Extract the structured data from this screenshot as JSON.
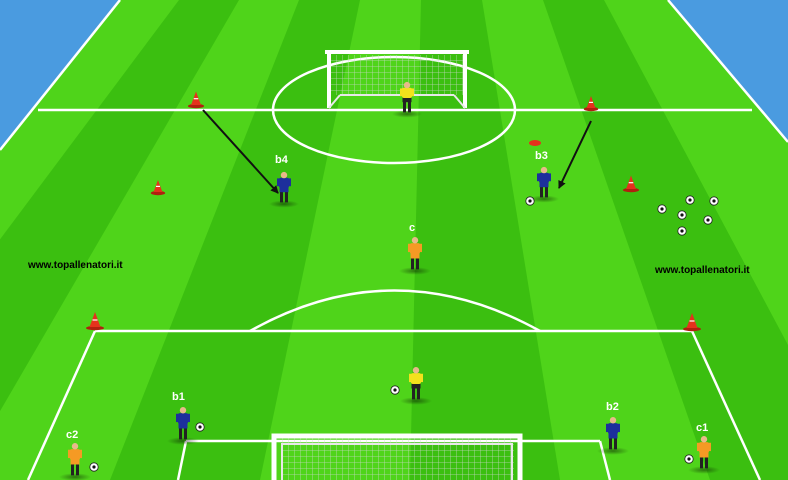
{
  "watermarks": {
    "left": "www.topallenatori.it",
    "right": "www.topallenatori.it"
  },
  "players": {
    "b1": "b1",
    "b2": "b2",
    "b3": "b3",
    "b4": "b4",
    "c": "c",
    "c1": "c1",
    "c2": "c2"
  },
  "colors": {
    "sky": "#4a9be0",
    "grass_light": "#4fd41a",
    "grass_dark": "#3bbf10",
    "lines": "#ffffff",
    "team_blue": "#1d2f9c",
    "team_orange": "#f59a24",
    "goalkeeper_yellow": "#f2e21c",
    "cone": "#e5321c",
    "arrow": "#111111"
  },
  "icons": {
    "cone": "cone-icon",
    "ball": "soccer-ball-icon",
    "goal": "goal-net-icon",
    "player": "player-icon"
  }
}
